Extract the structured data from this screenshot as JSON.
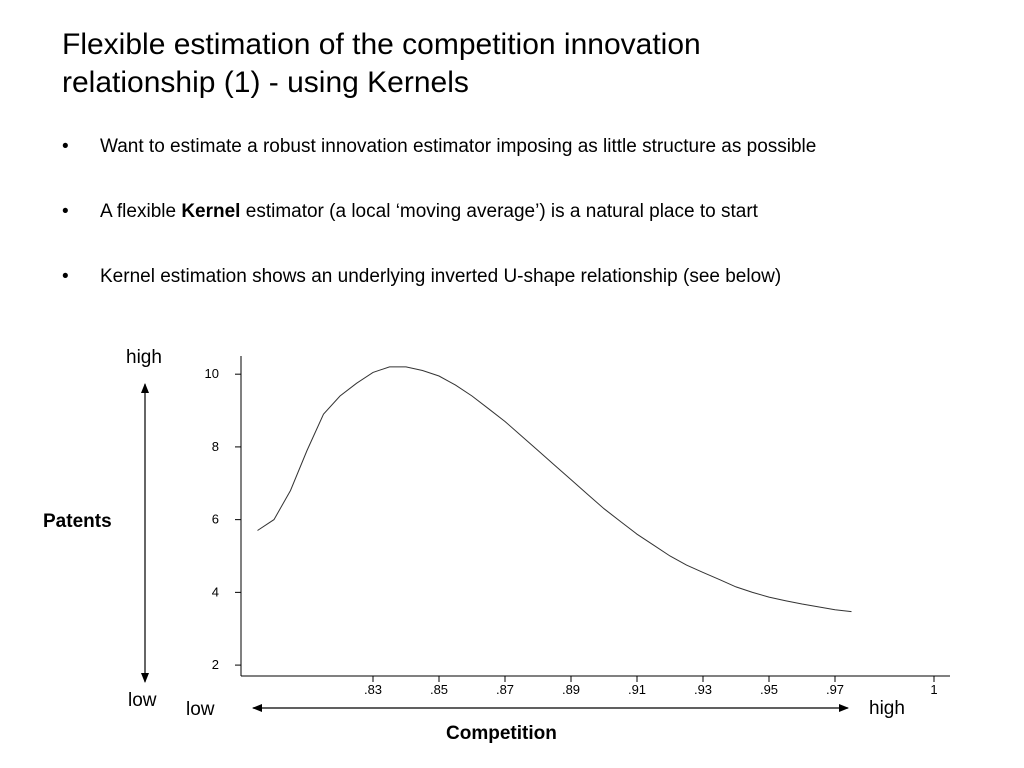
{
  "slide": {
    "title_line1": "Flexible estimation of the competition innovation",
    "title_line2": "relationship (1) - using Kernels",
    "bullets": [
      {
        "text": "Want to estimate a robust innovation estimator imposing as little structure as possible"
      },
      {
        "pre": "A flexible ",
        "bold": "Kernel",
        "post": " estimator (a local ‘moving average’) is a natural place to start"
      },
      {
        "text": "Kernel estimation shows an underlying inverted U-shape relationship (see below)"
      }
    ],
    "bullet_glyph": "•"
  },
  "annotations": {
    "y_high": "high",
    "y_low": "low",
    "y_title": "Patents",
    "x_low": "low",
    "x_high": "high",
    "x_title": "Competition"
  },
  "chart_data": {
    "type": "line",
    "x_tick_labels": [
      ".83",
      ".85",
      ".87",
      ".89",
      ".91",
      ".93",
      ".95",
      ".97",
      "1"
    ],
    "x_ticks": [
      0.83,
      0.85,
      0.87,
      0.89,
      0.91,
      0.93,
      0.95,
      0.97,
      1.0
    ],
    "xlim": [
      0.79,
      1.0
    ],
    "y_tick_labels": [
      "2",
      "4",
      "6",
      "8",
      "10"
    ],
    "y_ticks": [
      2,
      4,
      6,
      8,
      10
    ],
    "ylim": [
      1.7,
      10.5
    ],
    "series": [
      {
        "color": "#333333",
        "x": [
          0.795,
          0.8,
          0.805,
          0.81,
          0.815,
          0.82,
          0.825,
          0.83,
          0.835,
          0.84,
          0.845,
          0.85,
          0.855,
          0.86,
          0.865,
          0.87,
          0.875,
          0.88,
          0.885,
          0.89,
          0.895,
          0.9,
          0.905,
          0.91,
          0.915,
          0.92,
          0.925,
          0.93,
          0.935,
          0.94,
          0.945,
          0.95,
          0.955,
          0.96,
          0.965,
          0.97,
          0.975
        ],
        "y": [
          5.7,
          6.0,
          6.8,
          7.9,
          8.9,
          9.4,
          9.75,
          10.05,
          10.2,
          10.2,
          10.1,
          9.95,
          9.7,
          9.4,
          9.05,
          8.7,
          8.3,
          7.9,
          7.5,
          7.1,
          6.7,
          6.3,
          5.95,
          5.6,
          5.3,
          5.0,
          4.75,
          4.55,
          4.35,
          4.15,
          4.0,
          3.87,
          3.77,
          3.68,
          3.6,
          3.52,
          3.47
        ]
      }
    ],
    "grid": false,
    "legend": "none"
  },
  "colors": {
    "curve": "#333333",
    "axis": "#000000"
  }
}
